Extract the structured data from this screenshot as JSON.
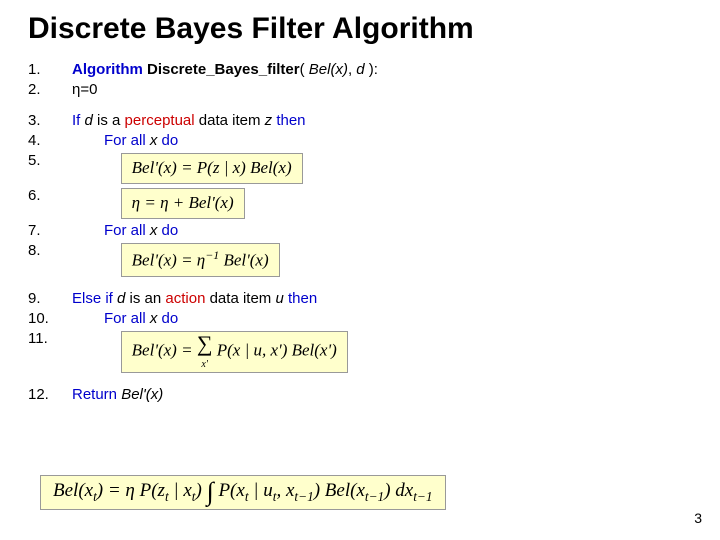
{
  "title": "Discrete Bayes Filter Algorithm",
  "page_number": "3",
  "colors": {
    "keyword": "#0000cc",
    "data_kind": "#cc0000",
    "formula_bg": "#ffffcc",
    "text": "#000000"
  },
  "steps": {
    "n1": "1.",
    "n2": "2.",
    "n3": "3.",
    "n4": "4.",
    "n5": "5.",
    "n6": "6.",
    "n7": "7.",
    "n8": "8.",
    "n9": "9.",
    "n10": "10.",
    "n11": "11.",
    "n12": "12."
  },
  "text": {
    "algo_kw": "Algorithm",
    "algo_name": "Discrete_Bayes_filter",
    "paren_open": "( ",
    "bel_x": "Bel(x)",
    "comma": ", ",
    "d_var": "d",
    "paren_close": " ):",
    "eta_zero": "η=0",
    "if_kw": "If ",
    "is_a": " is a ",
    "perceptual": "perceptual",
    "data_item": " data item ",
    "z_var": "z",
    "then_kw": " then",
    "for_all": "For all ",
    "x_var": "x",
    "do_kw": " do",
    "else_kw": "Else if ",
    "is_an": " is an ",
    "action": "action",
    "u_var": "u",
    "return_kw": "Return ",
    "bel_prime_x": "Bel'(x)"
  },
  "formulas": {
    "f5": "Bel'(x) = P(z | x) Bel(x)",
    "f6": "η = η + Bel'(x)",
    "f8_lhs": "Bel'(x) = η",
    "f8_sup": "−1",
    "f8_rhs": " Bel'(x)",
    "f11_lhs": "Bel'(x) = ",
    "f11_sum_sub": "x'",
    "f11_rhs": " P(x | u, x') Bel(x')",
    "bottom_lhs": "Bel(x",
    "bottom_t": "t",
    "bottom_eq": ") = η P(z",
    "bottom_pipe": " | x",
    "bottom_paren": ") ",
    "bottom_int_body": " P(x",
    "bottom_u": " | u",
    "bottom_xp": ", x",
    "bottom_tm1": "t−1",
    "bottom_bel": ") Bel(x",
    "bottom_dx": ") dx"
  }
}
